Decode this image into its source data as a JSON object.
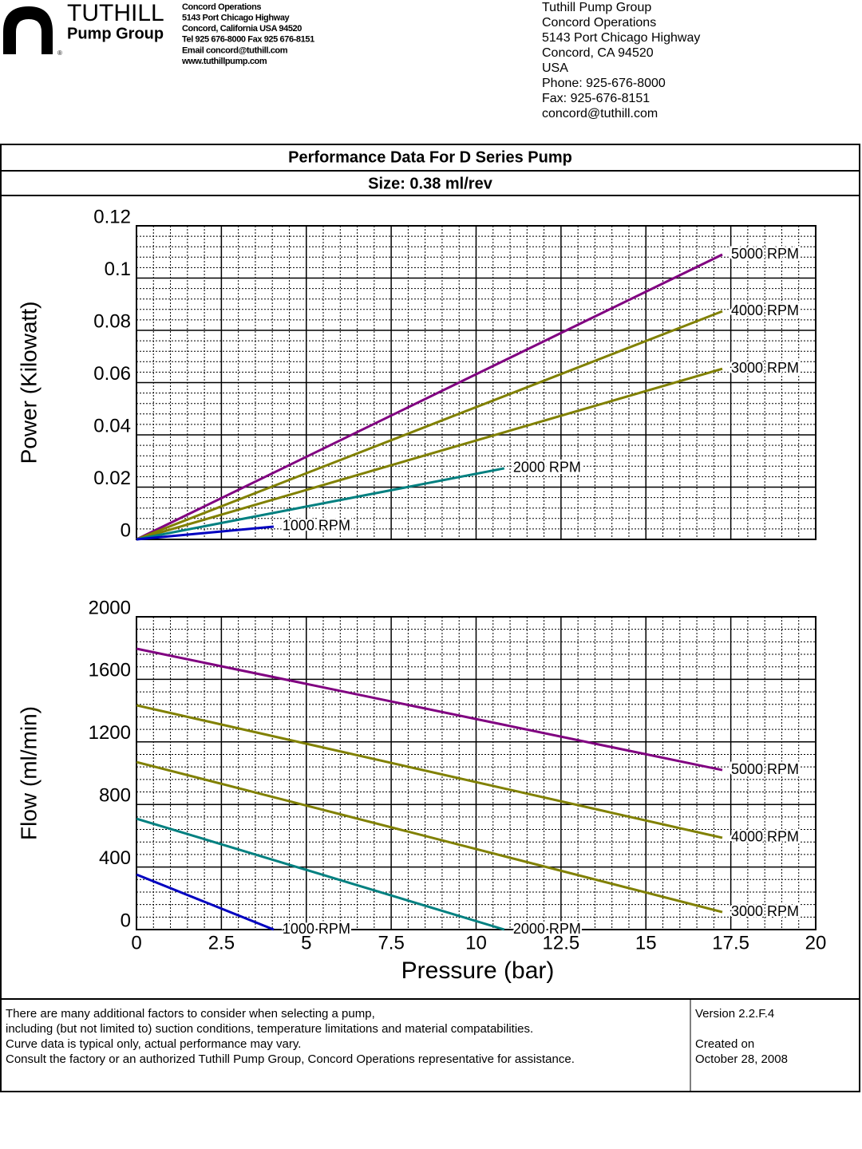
{
  "header": {
    "logo": {
      "name": "TUTHILL",
      "subtitle": "Pump Group",
      "mark": "®"
    },
    "address_small": [
      "Concord Operations",
      "5143 Port Chicago Highway",
      "Concord, California USA 94520",
      "Tel 925 676-8000  Fax 925 676-8151",
      "Email  concord@tuthill.com",
      "www.tuthillpump.com"
    ],
    "address": [
      "Tuthill Pump Group",
      "Concord Operations",
      "5143 Port Chicago Highway",
      "Concord, CA  94520",
      "USA",
      "Phone: 925-676-8000",
      "Fax: 925-676-8151",
      "concord@tuthill.com"
    ]
  },
  "title": "Performance Data For D Series Pump",
  "subtitle": "Size: 0.38 ml/rev",
  "chart_data": [
    {
      "type": "line",
      "y_label": "Power (Kilowatt)",
      "xlim": [
        0,
        20
      ],
      "ylim": [
        0,
        0.12
      ],
      "xticks": [
        0,
        2.5,
        5,
        7.5,
        10,
        12.5,
        15,
        17.5,
        20
      ],
      "yticks": [
        0,
        0.02,
        0.04,
        0.06,
        0.08,
        0.1,
        0.12
      ],
      "grid": true,
      "series": [
        {
          "name": "5000 RPM",
          "color": "#800080",
          "x": [
            0,
            17.25
          ],
          "values": [
            0,
            0.109
          ]
        },
        {
          "name": "4000 RPM",
          "color": "#808000",
          "x": [
            0,
            17.25
          ],
          "values": [
            0,
            0.0873
          ]
        },
        {
          "name": "3000 RPM",
          "color": "#808000",
          "x": [
            0,
            17.25
          ],
          "values": [
            0,
            0.0653
          ]
        },
        {
          "name": "2000 RPM",
          "color": "#008080",
          "x": [
            0,
            10.83
          ],
          "values": [
            0,
            0.0272
          ]
        },
        {
          "name": "1000 RPM",
          "color": "#0000c0",
          "x": [
            0,
            4.04
          ],
          "values": [
            0,
            0.0049
          ]
        }
      ]
    },
    {
      "type": "line",
      "x_label": "Pressure (bar)",
      "y_label": "Flow (ml/min)",
      "xlim": [
        0,
        20
      ],
      "ylim": [
        0,
        2000
      ],
      "xticks": [
        0,
        2.5,
        5,
        7.5,
        10,
        12.5,
        15,
        17.5,
        20
      ],
      "yticks": [
        0,
        400,
        800,
        1200,
        1600,
        2000
      ],
      "grid": true,
      "series": [
        {
          "name": "5000 RPM",
          "color": "#800080",
          "x": [
            0,
            17.25
          ],
          "values": [
            1796,
            1020
          ]
        },
        {
          "name": "4000 RPM",
          "color": "#808000",
          "x": [
            0,
            17.25
          ],
          "values": [
            1434,
            587
          ]
        },
        {
          "name": "3000 RPM",
          "color": "#808000",
          "x": [
            0,
            17.25
          ],
          "values": [
            1071,
            112
          ]
        },
        {
          "name": "2000 RPM",
          "color": "#008080",
          "x": [
            0,
            10.83
          ],
          "values": [
            709,
            0
          ]
        },
        {
          "name": "1000 RPM",
          "color": "#0000c0",
          "x": [
            0,
            4.04
          ],
          "values": [
            352,
            0
          ]
        }
      ]
    }
  ],
  "footer": {
    "notes": [
      "There are many additional factors to consider when selecting a pump,",
      "including (but not limited to) suction conditions, temperature limitations and material compatabilities.",
      "Curve data is typical only, actual performance may vary.",
      "Consult the factory or an authorized Tuthill Pump Group, Concord Operations representative for assistance."
    ],
    "version": "Version 2.2.F.4",
    "created_label": "Created on",
    "created_date": "October 28, 2008"
  }
}
